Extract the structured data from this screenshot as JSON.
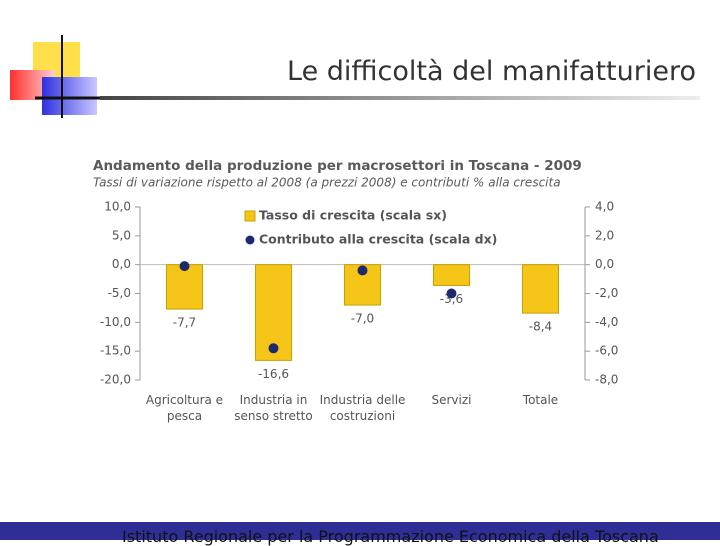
{
  "slide_title": "Le difficoltà del manifatturiero",
  "footer": "Istituto Regionale per la Programmazione Economica della Toscana",
  "chart_data": {
    "type": "bar",
    "title": "Andamento della produzione per macrosettori in Toscana - 2009",
    "subtitle": "Tassi di variazione rispetto al 2008 (a prezzi 2008) e contributi % alla crescita",
    "categories": [
      "Agricoltura e pesca",
      "Industria in senso stretto",
      "Industria delle costruzioni",
      "Servizi",
      "Totale"
    ],
    "series": [
      {
        "name": "Tasso di crescita (scala sx)",
        "type": "bar",
        "color": "#f5c518",
        "values": [
          -7.7,
          -16.6,
          -7.0,
          -3.6,
          -8.4
        ],
        "value_labels": [
          "-7,7",
          "-16,6",
          "-7,0",
          "-3,6",
          "-8,4"
        ]
      },
      {
        "name": "Contributo alla crescita (scala dx)",
        "type": "scatter",
        "axis": "y2",
        "color": "#1f2a6e",
        "values": [
          -0.1,
          -5.8,
          -0.4,
          -2.0,
          null
        ]
      }
    ],
    "ylim": [
      -20,
      10
    ],
    "yticks": [
      {
        "value": 10,
        "label": "10,0"
      },
      {
        "value": 5,
        "label": "5,0"
      },
      {
        "value": 0,
        "label": "0,0"
      },
      {
        "value": -5,
        "label": "-5,0"
      },
      {
        "value": -10,
        "label": "-10,0"
      },
      {
        "value": -15,
        "label": "-15,0"
      },
      {
        "value": -20,
        "label": "-20,0"
      }
    ],
    "y2lim": [
      -8,
      4
    ],
    "y2ticks": [
      {
        "value": 4,
        "label": "4,0"
      },
      {
        "value": 2,
        "label": "2,0"
      },
      {
        "value": 0,
        "label": "0,0"
      },
      {
        "value": -2,
        "label": "-2,0"
      },
      {
        "value": -4,
        "label": "-4,0"
      },
      {
        "value": -6,
        "label": "-6,0"
      },
      {
        "value": -8,
        "label": "-8,0"
      }
    ],
    "legend": "top"
  }
}
